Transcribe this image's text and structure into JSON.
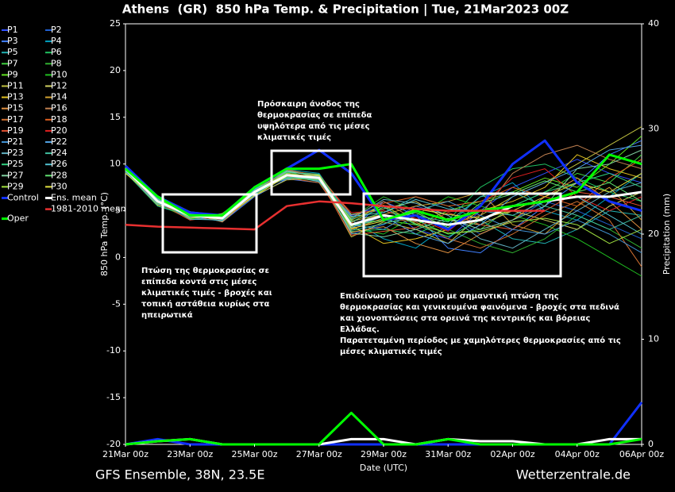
{
  "chart_data": {
    "type": "line",
    "title": "Athens  (GR)  850 hPa Temp. & Precipitation | Tue, 21Mar2023 00Z",
    "xlabel": "Date (UTC)",
    "ylabel": "850 hPa Temp. (°C)",
    "y2label": "Precipitation (mm)",
    "footer_left": "GFS Ensemble, 38N, 23.5E",
    "footer_right": "Wetterzentrale.de",
    "categories": [
      "21Mar 00z",
      null,
      "23Mar 00z",
      null,
      "25Mar 00z",
      null,
      "27Mar 00z",
      null,
      "29Mar 00z",
      null,
      "31Mar 00z",
      null,
      "02Apr 00z",
      null,
      "04Apr 00z",
      null,
      "06Apr 00z"
    ],
    "ylim": [
      -20,
      25
    ],
    "yticks": [
      -20,
      -15,
      -10,
      -5,
      0,
      5,
      10,
      15,
      20,
      25
    ],
    "y2lim": [
      0,
      40
    ],
    "y2ticks": [
      0,
      10,
      20,
      30,
      40
    ],
    "grid": false,
    "series": [
      {
        "name": "P1",
        "color": "#3050ff",
        "values": [
          9.2,
          6.2,
          4.6,
          4.0,
          6.8,
          9.0,
          8.2,
          4.5,
          5.5,
          3.0,
          2.0,
          5.0,
          7.5,
          9.0,
          10.5,
          9.0,
          8.0
        ]
      },
      {
        "name": "P2",
        "color": "#2060d0",
        "values": [
          9.6,
          5.8,
          4.2,
          4.4,
          7.2,
          8.6,
          8.8,
          2.5,
          3.5,
          5.5,
          4.5,
          2.5,
          4.0,
          6.0,
          5.0,
          3.5,
          2.0
        ]
      },
      {
        "name": "P3",
        "color": "#4080ff",
        "values": [
          9.0,
          6.5,
          4.9,
          3.8,
          6.5,
          8.4,
          8.0,
          3.0,
          6.0,
          4.5,
          1.0,
          0.5,
          3.0,
          5.5,
          8.0,
          11.0,
          12.5
        ]
      },
      {
        "name": "P4",
        "color": "#00a0c0",
        "values": [
          9.8,
          6.0,
          4.0,
          4.6,
          7.5,
          9.4,
          9.0,
          4.0,
          2.0,
          1.0,
          3.5,
          6.5,
          8.0,
          5.0,
          4.0,
          6.5,
          9.0
        ]
      },
      {
        "name": "P5",
        "color": "#20b0b0",
        "values": [
          9.4,
          5.5,
          4.4,
          4.2,
          7.0,
          8.8,
          8.6,
          3.8,
          4.8,
          6.5,
          5.5,
          4.0,
          2.0,
          1.5,
          3.0,
          5.0,
          4.5
        ]
      },
      {
        "name": "P6",
        "color": "#20c060",
        "values": [
          9.1,
          6.3,
          4.7,
          4.1,
          6.9,
          9.2,
          8.3,
          2.8,
          3.0,
          2.5,
          4.0,
          7.5,
          9.5,
          10.0,
          8.5,
          7.0,
          6.0
        ]
      },
      {
        "name": "P7",
        "color": "#40d040",
        "values": [
          9.7,
          5.9,
          4.3,
          4.5,
          7.3,
          8.5,
          8.7,
          3.3,
          5.0,
          4.0,
          2.5,
          3.0,
          5.5,
          7.0,
          9.0,
          8.0,
          11.0
        ]
      },
      {
        "name": "P8",
        "color": "#30b030",
        "values": [
          9.3,
          6.1,
          4.5,
          4.3,
          7.1,
          8.9,
          8.4,
          4.2,
          6.5,
          5.0,
          3.0,
          1.5,
          0.5,
          2.0,
          4.5,
          3.0,
          1.0
        ]
      },
      {
        "name": "P9",
        "color": "#60e020",
        "values": [
          9.5,
          6.4,
          4.8,
          3.9,
          6.7,
          8.7,
          8.9,
          3.6,
          4.0,
          3.5,
          5.0,
          6.0,
          7.0,
          8.5,
          7.5,
          10.0,
          13.0
        ]
      },
      {
        "name": "P10",
        "color": "#20c020",
        "values": [
          9.9,
          5.7,
          4.1,
          4.7,
          7.4,
          9.1,
          8.1,
          3.1,
          2.5,
          4.5,
          6.5,
          5.5,
          4.5,
          3.5,
          2.0,
          0.0,
          -2.0
        ]
      },
      {
        "name": "P11",
        "color": "#c0c040",
        "values": [
          9.0,
          6.6,
          4.6,
          4.0,
          6.6,
          8.3,
          8.5,
          2.2,
          3.8,
          3.0,
          1.5,
          4.5,
          6.5,
          8.0,
          10.0,
          12.0,
          14.0
        ]
      },
      {
        "name": "P12",
        "color": "#d0d060",
        "values": [
          9.6,
          6.0,
          4.4,
          4.4,
          7.6,
          9.3,
          8.8,
          4.6,
          5.2,
          6.0,
          4.0,
          3.5,
          5.0,
          4.0,
          3.0,
          5.5,
          7.0
        ]
      },
      {
        "name": "P13",
        "color": "#e0c020",
        "values": [
          9.2,
          5.6,
          4.9,
          4.2,
          7.0,
          8.6,
          8.2,
          3.4,
          1.5,
          2.0,
          3.0,
          5.0,
          6.0,
          7.5,
          11.0,
          9.5,
          8.5
        ]
      },
      {
        "name": "P14",
        "color": "#d0a030",
        "values": [
          9.4,
          6.2,
          4.2,
          4.6,
          7.2,
          9.0,
          8.6,
          3.9,
          4.6,
          5.5,
          6.0,
          7.0,
          3.5,
          2.5,
          5.5,
          7.5,
          4.0
        ]
      },
      {
        "name": "P15",
        "color": "#e09040",
        "values": [
          9.8,
          6.3,
          4.7,
          3.8,
          6.8,
          8.8,
          8.4,
          2.7,
          3.3,
          1.5,
          0.5,
          2.5,
          4.0,
          6.5,
          8.5,
          6.0,
          3.0
        ]
      },
      {
        "name": "P16",
        "color": "#c08050",
        "values": [
          9.1,
          5.8,
          4.3,
          4.5,
          7.3,
          9.2,
          8.9,
          4.3,
          6.0,
          4.0,
          3.5,
          4.5,
          9.0,
          11.0,
          12.0,
          10.5,
          9.5
        ]
      },
      {
        "name": "P17",
        "color": "#d07030",
        "values": [
          9.7,
          6.1,
          4.6,
          4.1,
          7.0,
          8.5,
          8.0,
          3.0,
          4.2,
          3.8,
          2.0,
          1.0,
          2.5,
          4.5,
          6.0,
          4.0,
          -1.0
        ]
      },
      {
        "name": "P18",
        "color": "#e06020",
        "values": [
          9.3,
          6.5,
          4.5,
          4.3,
          6.9,
          9.4,
          8.7,
          3.7,
          5.8,
          6.5,
          5.5,
          6.0,
          7.5,
          6.5,
          5.5,
          8.5,
          10.5
        ]
      },
      {
        "name": "P19",
        "color": "#e05030",
        "values": [
          9.5,
          5.9,
          4.0,
          4.4,
          7.5,
          8.7,
          8.3,
          2.4,
          2.8,
          3.2,
          4.8,
          3.5,
          3.0,
          5.0,
          7.0,
          6.5,
          5.5
        ]
      },
      {
        "name": "P20",
        "color": "#e02020",
        "values": [
          9.0,
          6.0,
          4.8,
          4.0,
          7.1,
          9.0,
          8.5,
          4.8,
          5.0,
          4.2,
          2.8,
          5.5,
          8.5,
          9.5,
          6.5,
          5.0,
          6.5
        ]
      },
      {
        "name": "P21",
        "color": "#4090d0",
        "values": [
          9.6,
          6.4,
          4.4,
          4.6,
          6.7,
          8.9,
          8.2,
          3.5,
          3.0,
          5.0,
          6.0,
          4.5,
          3.0,
          2.5,
          4.0,
          2.5,
          0.5
        ]
      },
      {
        "name": "P22",
        "color": "#50a0e0",
        "values": [
          9.2,
          5.7,
          4.7,
          4.2,
          7.4,
          8.4,
          8.8,
          3.2,
          4.4,
          2.5,
          1.5,
          3.5,
          6.5,
          8.0,
          9.5,
          11.5,
          12.0
        ]
      },
      {
        "name": "P23",
        "color": "#60b0c0",
        "values": [
          9.8,
          6.2,
          4.3,
          3.9,
          7.2,
          9.3,
          8.6,
          4.1,
          6.2,
          5.8,
          4.5,
          2.0,
          1.0,
          3.0,
          5.0,
          7.0,
          8.0
        ]
      },
      {
        "name": "P24",
        "color": "#40c0a0",
        "values": [
          9.4,
          6.6,
          4.9,
          4.5,
          6.8,
          8.6,
          8.4,
          2.9,
          3.6,
          4.5,
          3.8,
          6.5,
          7.0,
          5.5,
          4.5,
          3.0,
          4.5
        ]
      },
      {
        "name": "P25",
        "color": "#30d080",
        "values": [
          9.1,
          5.5,
          4.5,
          4.3,
          7.0,
          9.1,
          8.9,
          3.8,
          5.4,
          3.5,
          2.2,
          4.0,
          5.5,
          7.0,
          8.0,
          9.0,
          7.5
        ]
      },
      {
        "name": "P26",
        "color": "#50c0d0",
        "values": [
          9.7,
          6.3,
          4.1,
          4.0,
          7.3,
          8.8,
          8.1,
          4.4,
          4.8,
          6.2,
          5.2,
          5.0,
          4.5,
          6.0,
          6.5,
          4.5,
          2.5
        ]
      },
      {
        "name": "P27",
        "color": "#80d0a0",
        "values": [
          9.3,
          6.0,
          4.6,
          4.4,
          6.9,
          9.2,
          8.7,
          2.6,
          2.2,
          3.0,
          4.2,
          3.0,
          4.0,
          5.5,
          9.5,
          10.0,
          11.5
        ]
      },
      {
        "name": "P28",
        "color": "#60e070",
        "values": [
          9.5,
          5.8,
          4.8,
          4.1,
          7.5,
          8.5,
          8.3,
          3.4,
          4.0,
          4.8,
          3.2,
          5.8,
          6.8,
          8.2,
          7.0,
          8.0,
          6.0
        ]
      },
      {
        "name": "P29",
        "color": "#a0e040",
        "values": [
          9.9,
          6.4,
          4.2,
          4.7,
          7.1,
          9.0,
          8.5,
          4.0,
          5.6,
          3.6,
          2.6,
          2.8,
          3.8,
          4.2,
          3.5,
          1.5,
          3.0
        ]
      },
      {
        "name": "P30",
        "color": "#e0e040",
        "values": [
          9.0,
          6.1,
          4.5,
          4.2,
          6.6,
          8.7,
          8.8,
          3.1,
          3.9,
          5.2,
          4.6,
          4.2,
          5.0,
          6.5,
          8.0,
          7.0,
          9.0
        ]
      },
      {
        "name": "Control",
        "color": "#1030ff",
        "width": 3,
        "values": [
          9.8,
          6.5,
          4.8,
          4.5,
          7.5,
          9.5,
          11.5,
          9.0,
          4.0,
          4.5,
          3.0,
          5.5,
          10.0,
          12.5,
          8.0,
          6.0,
          5.0
        ],
        "precip": [
          0,
          0.5,
          0,
          0,
          0,
          0,
          0,
          0,
          0,
          0,
          0,
          0,
          0,
          0,
          0,
          0,
          4
        ]
      },
      {
        "name": "Ens. mean",
        "color": "#ffffff",
        "width": 3,
        "values": [
          9.5,
          6.0,
          4.5,
          4.2,
          7.0,
          8.8,
          8.5,
          3.5,
          4.5,
          4.0,
          3.5,
          4.0,
          5.5,
          6.0,
          6.5,
          6.5,
          7.0
        ],
        "precip": [
          0,
          0.3,
          0.5,
          0,
          0,
          0,
          0,
          0.5,
          0.5,
          0,
          0.5,
          0.3,
          0.3,
          0,
          0,
          0.5,
          0.5
        ]
      },
      {
        "name": "Oper",
        "color": "#00ff00",
        "width": 3,
        "values": [
          9.5,
          6.5,
          4.5,
          4.5,
          7.5,
          9.5,
          9.5,
          10.0,
          4.0,
          5.0,
          4.0,
          5.0,
          5.5,
          6.0,
          7.0,
          11.0,
          10.0
        ],
        "precip": [
          0,
          0.3,
          0.5,
          0,
          0,
          0,
          0,
          3,
          0,
          0,
          0.5,
          0,
          0,
          0,
          0,
          0,
          0.5
        ]
      },
      {
        "name": "1981-2010 mean",
        "color": "#e83030",
        "width": 2.5,
        "values": [
          3.5,
          3.3,
          3.2,
          3.1,
          3.0,
          5.5,
          6.0,
          5.8,
          5.5,
          5.2,
          5.0,
          5.0,
          5.0,
          5.0,
          null,
          null,
          null
        ]
      }
    ],
    "annotations": [
      [
        "Πρόσκαιρη άνοδος της",
        "θερμοκρασίας σε επίπεδα",
        "υψηλότερα από τις μέσες",
        "κλιματικές τιμές"
      ],
      [
        "Πτώση της θερμοκρασίας σε",
        "επίπεδα κοντά στις μέσες",
        "κλιματικές τιμές - βροχές και",
        "τοπική αστάθεια κυρίως στα",
        "ηπειρωτικά"
      ],
      [
        "Επιδείνωση του καιρού με σημαντική πτώση της",
        "θερμοκρασίας και γενικευμένα φαινόμενα - βροχές στα πεδινά",
        "και χιονοπτώσεις στα ορεινά της κεντρικής και βόρειας",
        "Ελλάδας.",
        "Παρατεταμένη περίοδος με χαμηλότερες θερμοκρασίες από τις",
        "μέσες κλιματικές τιμές"
      ]
    ]
  }
}
